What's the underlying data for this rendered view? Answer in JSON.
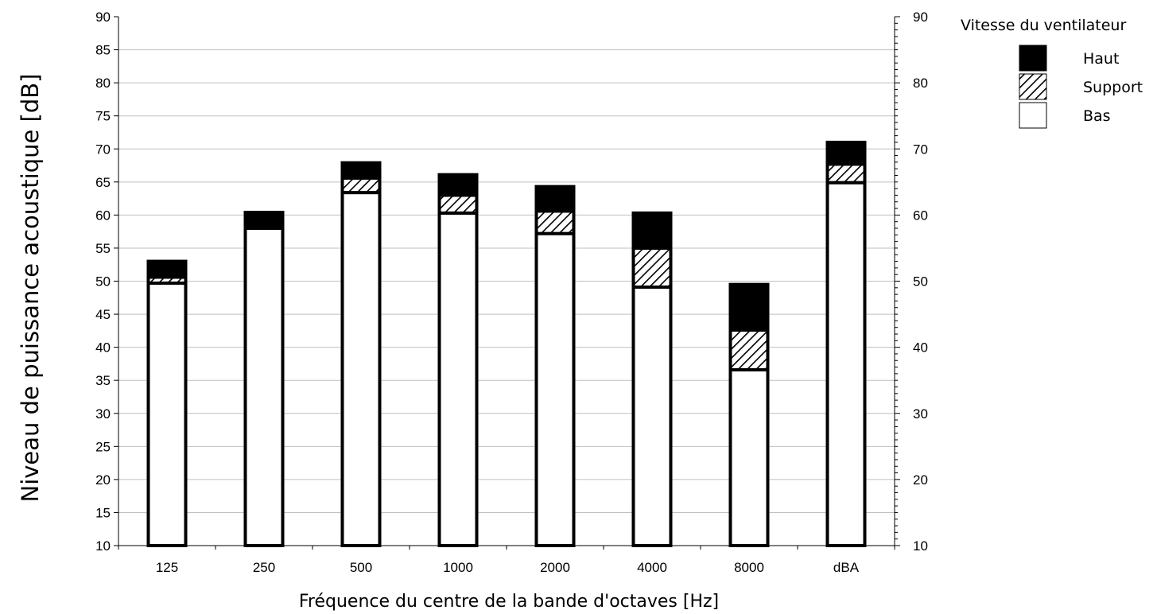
{
  "chart_data": {
    "type": "bar",
    "stacked": true,
    "categories": [
      "125",
      "250",
      "500",
      "1000",
      "2000",
      "4000",
      "8000",
      "dBA"
    ],
    "series": [
      {
        "name": "Bas",
        "values": [
          49.7,
          58.0,
          63.4,
          60.3,
          57.2,
          49.1,
          36.6,
          64.9
        ],
        "pattern": "empty"
      },
      {
        "name": "Support",
        "values": [
          50.6,
          58.0,
          65.6,
          63.0,
          60.6,
          55.0,
          42.6,
          67.7
        ],
        "pattern": "hatched"
      },
      {
        "name": "Haut",
        "values": [
          53.0,
          60.4,
          67.9,
          66.1,
          64.3,
          60.3,
          49.5,
          71.0
        ],
        "pattern": "solid"
      }
    ],
    "title": "",
    "xlabel": "Fréquence du centre de la bande d'octaves [Hz]",
    "ylabel": "Niveau de puissance acoustique [dB]",
    "ylim": [
      10,
      90
    ],
    "left_ticks": [
      "10",
      "15",
      "20",
      "25",
      "30",
      "35",
      "40",
      "45",
      "50",
      "55",
      "60",
      "65",
      "70",
      "75",
      "80",
      "85",
      "90"
    ],
    "right_ticks": [
      "10",
      "20",
      "30",
      "40",
      "50",
      "60",
      "70",
      "80",
      "90"
    ],
    "grid": true,
    "legend": {
      "title": "Vitesse du ventilateur",
      "placement": "top-right",
      "items": [
        {
          "label": "Haut",
          "pattern": "solid"
        },
        {
          "label": "Support",
          "pattern": "hatched"
        },
        {
          "label": "Bas",
          "pattern": "empty"
        }
      ]
    },
    "colors": {
      "bar_fill": "#000000",
      "bar_empty": "#ffffff",
      "grid": "#bfbfbf",
      "axis": "#000000"
    }
  }
}
